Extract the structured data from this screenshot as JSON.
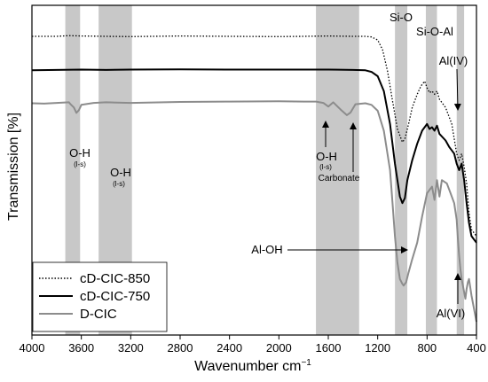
{
  "chart_data": {
    "type": "line",
    "title": "",
    "xlabel": "Wavenumber cm",
    "xlabel_sup": "−1",
    "ylabel": "Transmission [%]",
    "xlim": [
      4000,
      400
    ],
    "x_reversed": true,
    "ylim": [
      0,
      100
    ],
    "y_ticks_visible": false,
    "grid": false,
    "x_ticks": [
      "4000",
      "3600",
      "3200",
      "2800",
      "2400",
      "2000",
      "1600",
      "1200",
      "800",
      "400"
    ],
    "legend_position": "bottom-left",
    "bands": [
      {
        "from": 3730,
        "to": 3610
      },
      {
        "from": 3460,
        "to": 3190
      },
      {
        "from": 1700,
        "to": 1350
      },
      {
        "from": 1060,
        "to": 960
      },
      {
        "from": 810,
        "to": 720
      },
      {
        "from": 560,
        "to": 500
      }
    ],
    "annotations": [
      {
        "text": "Si-O"
      },
      {
        "text": "Si-O-Al"
      },
      {
        "text": "Al(IV)"
      },
      {
        "text": "O-H",
        "sub": "(l-s)"
      },
      {
        "text": "O-H",
        "sub": "(l-s)"
      },
      {
        "text": "O-H",
        "sub": "(l-s)"
      },
      {
        "text": "Carbonate"
      },
      {
        "text": "Al-OH"
      },
      {
        "text": "Al(VI)"
      }
    ],
    "series": [
      {
        "name": "cD-CIC-850",
        "style": "dotted",
        "color": "#000000",
        "x": [
          4000,
          3800,
          3700,
          3600,
          3400,
          3200,
          2800,
          2400,
          2000,
          1800,
          1600,
          1400,
          1300,
          1250,
          1200,
          1160,
          1120,
          1080,
          1040,
          1000,
          980,
          950,
          920,
          880,
          850,
          820,
          800,
          780,
          760,
          740,
          720,
          700,
          650,
          600,
          560,
          540,
          520,
          500,
          480,
          460,
          440,
          420,
          400
        ],
        "y": [
          90.6,
          90.6,
          90.8,
          90.7,
          90.6,
          90.5,
          90.7,
          90.6,
          90.5,
          90.6,
          90.7,
          90.6,
          90.6,
          90.4,
          89.5,
          86.5,
          80,
          71,
          62.5,
          58.5,
          59.5,
          64,
          69,
          73,
          75.5,
          77,
          75,
          73.5,
          74,
          73,
          74,
          71.5,
          69,
          64,
          55,
          53,
          55,
          51,
          46,
          37,
          32,
          31,
          30
        ]
      },
      {
        "name": "cD-CIC-750",
        "style": "solid",
        "color": "#000000",
        "x": [
          4000,
          3800,
          3600,
          3400,
          3200,
          2800,
          2400,
          2000,
          1800,
          1600,
          1400,
          1300,
          1250,
          1200,
          1150,
          1100,
          1060,
          1020,
          1000,
          980,
          960,
          920,
          880,
          840,
          800,
          780,
          760,
          740,
          720,
          700,
          650,
          620,
          600,
          580,
          560,
          540,
          520,
          500,
          480,
          460,
          440,
          420,
          400
        ],
        "y": [
          80.3,
          80.4,
          80.5,
          80.4,
          80.5,
          80.6,
          80.5,
          80.5,
          80.5,
          80.5,
          80.4,
          80.3,
          79.8,
          78.5,
          74,
          64,
          52,
          42,
          40,
          41.5,
          47,
          53,
          58,
          62,
          64,
          62.5,
          63,
          62,
          63.5,
          61,
          59,
          57,
          56,
          55,
          52,
          50,
          52,
          47,
          40,
          34,
          30,
          29,
          28
        ]
      },
      {
        "name": "D-CIC",
        "style": "solid",
        "color": "#8c8c8c",
        "x": [
          4000,
          3900,
          3800,
          3700,
          3690,
          3660,
          3640,
          3620,
          3600,
          3500,
          3400,
          3200,
          2800,
          2400,
          2000,
          1800,
          1700,
          1640,
          1600,
          1560,
          1500,
          1450,
          1420,
          1380,
          1300,
          1250,
          1200,
          1150,
          1100,
          1080,
          1060,
          1040,
          1020,
          1000,
          990,
          970,
          950,
          920,
          880,
          840,
          800,
          780,
          760,
          740,
          720,
          700,
          680,
          640,
          620,
          600,
          580,
          560,
          550,
          540,
          530,
          520,
          500,
          490,
          480,
          470,
          460,
          440,
          420,
          400
        ],
        "y": [
          70.3,
          70.2,
          70.4,
          70.6,
          70.1,
          69,
          67.4,
          68.2,
          69.8,
          70.4,
          70.6,
          70.4,
          70.7,
          70.8,
          70.9,
          70.8,
          70.8,
          70.4,
          69.3,
          70.6,
          68.4,
          66.7,
          67.5,
          70,
          70.3,
          69.8,
          68,
          62,
          50,
          40,
          30,
          22,
          17,
          15.5,
          15,
          16,
          19,
          23,
          28,
          36,
          43,
          44,
          45,
          41,
          47,
          42,
          47,
          46,
          44,
          42,
          40,
          35,
          29,
          24,
          20,
          17,
          13,
          11,
          14,
          16,
          17,
          12,
          8,
          4
        ]
      }
    ]
  }
}
